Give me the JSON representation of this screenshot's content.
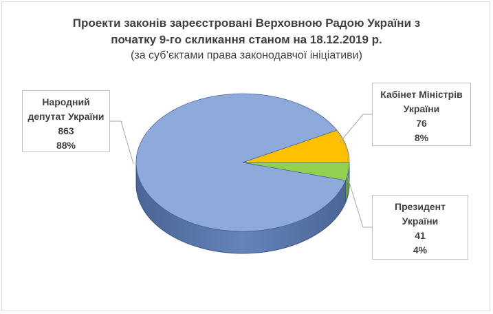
{
  "chart_data": {
    "type": "pie",
    "title_lines": [
      "Проекти законів зареєстровані Верховною Радою України з",
      "початку 9-го скликання станом на 18.12.2019 р."
    ],
    "subtitle": "(за суб’єктами права законодавчої ініціативи)",
    "slices": [
      {
        "label_lines": [
          "Народний",
          "депутат України"
        ],
        "value": 863,
        "percent": "88%",
        "color": "#8eaadb",
        "side": "#5b77a8"
      },
      {
        "label_lines": [
          "Кабінет Міністрів",
          "України"
        ],
        "value": 76,
        "percent": "8%",
        "color": "#ffc000",
        "side": "#c99700"
      },
      {
        "label_lines": [
          "Президент",
          "України"
        ],
        "value": 41,
        "percent": "4%",
        "color": "#92d050",
        "side": "#6a9e37"
      }
    ],
    "legend": "none",
    "data_labels": "callouts"
  }
}
